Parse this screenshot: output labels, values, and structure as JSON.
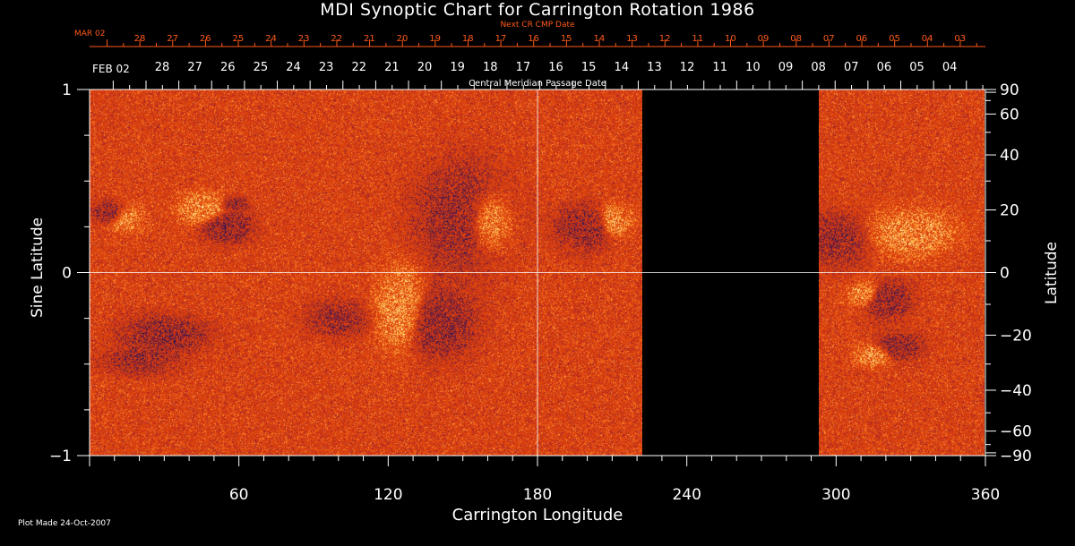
{
  "chart_data": {
    "type": "heatmap",
    "title": "MDI Synoptic Chart for Carrington Rotation 1986",
    "xlabel": "Carrington Longitude",
    "ylabel_left": "Sine Latitude",
    "ylabel_right": "Latitude",
    "x_range": [
      0,
      360
    ],
    "x_ticks": [
      60,
      120,
      180,
      240,
      300,
      360
    ],
    "y_left_range": [
      -1,
      1
    ],
    "y_left_ticks": [
      -1,
      0,
      1
    ],
    "y_left_tick_labels": [
      "−1",
      "0",
      "1"
    ],
    "y_right_ticks": [
      90,
      60,
      40,
      20,
      0,
      -20,
      -40,
      -60,
      -90
    ],
    "y_right_tick_labels": [
      "90",
      "60",
      "40",
      "20",
      "0",
      "−20",
      "−40",
      "−60",
      "−90"
    ],
    "data_gap_longitude": [
      222,
      293
    ],
    "crosshair": {
      "longitude": 180,
      "sine_latitude": 0
    },
    "next_cmp_axis": {
      "label": "Next CR CMP Date",
      "start_label": "MAR 02",
      "labels": [
        "28",
        "27",
        "26",
        "25",
        "24",
        "23",
        "22",
        "21",
        "20",
        "19",
        "18",
        "17",
        "16",
        "15",
        "14",
        "13",
        "12",
        "11",
        "10",
        "09",
        "08",
        "07",
        "06",
        "05",
        "04",
        "03"
      ]
    },
    "cmp_axis": {
      "label": "Central Meridian Passage Date",
      "start_label": "FEB 02",
      "labels": [
        "28",
        "27",
        "26",
        "25",
        "24",
        "23",
        "22",
        "21",
        "20",
        "19",
        "18",
        "17",
        "16",
        "15",
        "14",
        "13",
        "12",
        "11",
        "10",
        "09",
        "08",
        "07",
        "06",
        "05",
        "04"
      ]
    },
    "colors": {
      "background": "#000000",
      "field_base": "#e2410f",
      "positive": "#fff0b0",
      "negative": "#14144e",
      "top_axis": "#ff5a1a",
      "axes": "#ffffff"
    }
  },
  "footer": "Plot Made 24-Oct-2007"
}
